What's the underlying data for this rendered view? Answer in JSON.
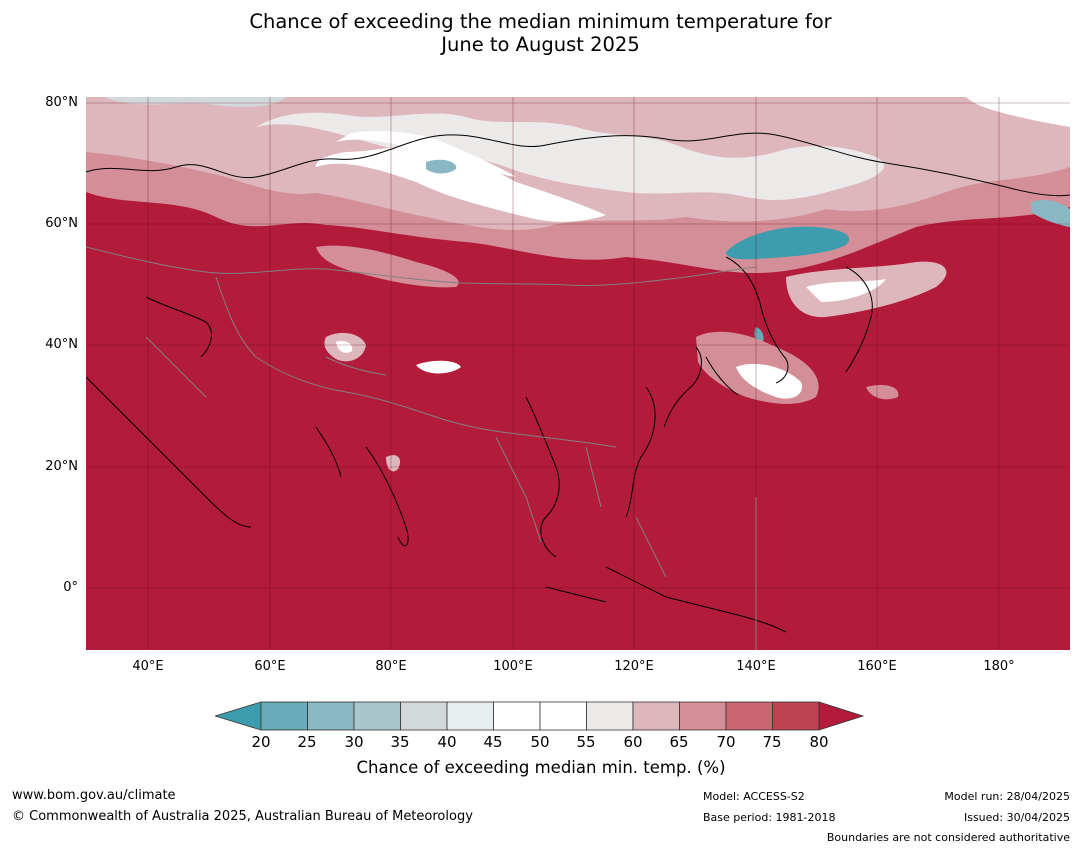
{
  "title": {
    "line1": "Chance of exceeding the median minimum temperature for",
    "line2": "June to August 2025"
  },
  "map": {
    "region": "Asia",
    "latitude_labels": [
      "80°N",
      "60°N",
      "40°N",
      "20°N",
      "0°"
    ],
    "longitude_labels": [
      "40°E",
      "60°E",
      "80°E",
      "100°E",
      "120°E",
      "140°E",
      "160°E",
      "180°"
    ],
    "dominant_category": "80+",
    "colors": {
      "ocean_land_dominant": "#b31b3a",
      "teal_extreme": "#3d9dae",
      "white": "#ffffff",
      "coastline": "#000000",
      "boundaries": "#808080"
    }
  },
  "colorbar": {
    "ticks": [
      "20",
      "25",
      "30",
      "35",
      "40",
      "45",
      "50",
      "55",
      "60",
      "65",
      "70",
      "75",
      "80"
    ],
    "colors": [
      "#3d9dae",
      "#6aa9b7",
      "#89b7c3",
      "#a9c6cc",
      "#d3d9da",
      "#e8eef0",
      "#ffffff",
      "#ffffff",
      "#ece9e9",
      "#deb7bd",
      "#d48e98",
      "#c86672",
      "#bd4352",
      "#b31b3a"
    ],
    "label": "Chance of exceeding median min. temp. (%)"
  },
  "footer": {
    "url": "www.bom.gov.au/climate",
    "copyright": "© Commonwealth of Australia 2025, Australian Bureau of Meteorology",
    "model": "Model: ACCESS-S2",
    "base_period": "Base period: 1981-2018",
    "model_run": "Model run: 28/04/2025",
    "issued": "Issued: 30/04/2025",
    "disclaimer": "Boundaries are not considered authoritative"
  }
}
